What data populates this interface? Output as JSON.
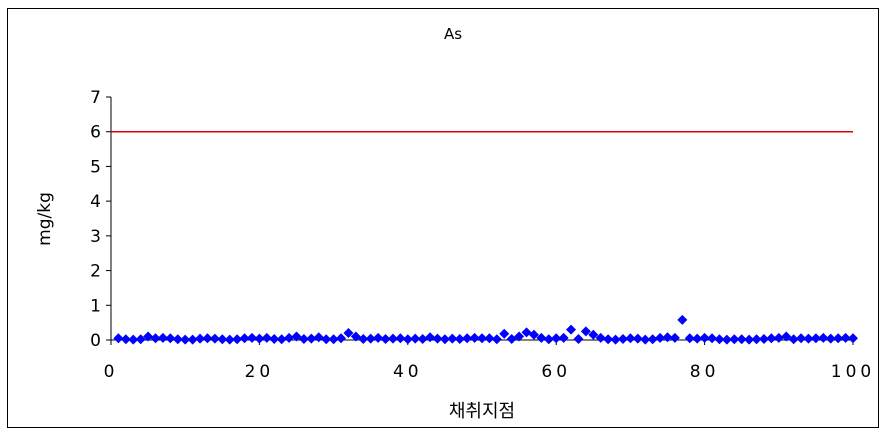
{
  "chart_data": {
    "type": "scatter",
    "title": "As",
    "xlabel": "채취지점",
    "ylabel": "mg/kg",
    "xlim": [
      0,
      100
    ],
    "ylim": [
      0,
      7
    ],
    "xticks": [
      0,
      20,
      40,
      60,
      80,
      100
    ],
    "yticks": [
      0,
      1,
      2,
      3,
      4,
      5,
      6,
      7
    ],
    "reference_line": {
      "y": 6,
      "x_range": [
        0,
        100
      ],
      "color": "#e00000"
    },
    "series": [
      {
        "color": "#0000ff",
        "marker": "diamond",
        "x": [
          1,
          2,
          3,
          4,
          5,
          6,
          7,
          8,
          9,
          10,
          11,
          12,
          13,
          14,
          15,
          16,
          17,
          18,
          19,
          20,
          21,
          22,
          23,
          24,
          25,
          26,
          27,
          28,
          29,
          30,
          31,
          32,
          33,
          34,
          35,
          36,
          37,
          38,
          39,
          40,
          41,
          42,
          43,
          44,
          45,
          46,
          47,
          48,
          49,
          50,
          51,
          52,
          53,
          54,
          55,
          56,
          57,
          58,
          59,
          60,
          61,
          62,
          63,
          64,
          65,
          66,
          67,
          68,
          69,
          70,
          71,
          72,
          73,
          74,
          75,
          76,
          77,
          78,
          79,
          80,
          81,
          82,
          83,
          84,
          85,
          86,
          87,
          88,
          89,
          90,
          91,
          92,
          93,
          94,
          95,
          96,
          97,
          98,
          99,
          100
        ],
        "y": [
          0.05,
          0.02,
          0.01,
          0.02,
          0.1,
          0.05,
          0.06,
          0.05,
          0.02,
          0.01,
          0.01,
          0.04,
          0.05,
          0.04,
          0.02,
          0.01,
          0.02,
          0.05,
          0.06,
          0.04,
          0.06,
          0.03,
          0.02,
          0.06,
          0.1,
          0.03,
          0.04,
          0.08,
          0.02,
          0.02,
          0.05,
          0.2,
          0.1,
          0.03,
          0.04,
          0.06,
          0.03,
          0.04,
          0.05,
          0.02,
          0.04,
          0.03,
          0.08,
          0.04,
          0.02,
          0.04,
          0.03,
          0.05,
          0.06,
          0.05,
          0.05,
          0.02,
          0.18,
          0.03,
          0.1,
          0.22,
          0.15,
          0.06,
          0.02,
          0.05,
          0.06,
          0.3,
          0.03,
          0.25,
          0.15,
          0.06,
          0.02,
          0.01,
          0.03,
          0.05,
          0.04,
          0.01,
          0.02,
          0.06,
          0.08,
          0.06,
          0.58,
          0.05,
          0.04,
          0.06,
          0.05,
          0.02,
          0.01,
          0.02,
          0.02,
          0.01,
          0.02,
          0.03,
          0.05,
          0.06,
          0.1,
          0.02,
          0.05,
          0.04,
          0.05,
          0.06,
          0.04,
          0.05,
          0.06,
          0.05
        ]
      }
    ]
  }
}
